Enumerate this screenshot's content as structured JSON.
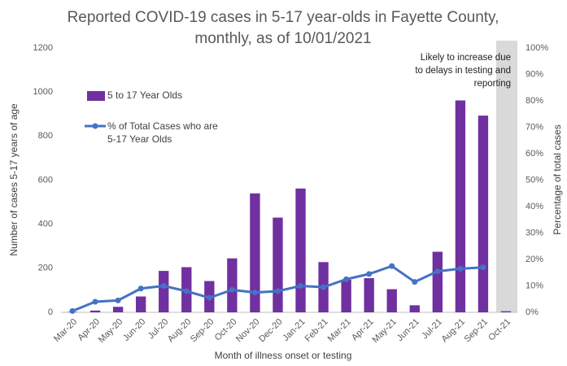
{
  "chart_data": {
    "type": "bar_line",
    "title": [
      "Reported COVID-19 cases in 5-17 year-olds in Fayette County,",
      "monthly, as of 10/01/2021"
    ],
    "x_label": "Month of illness onset or testing",
    "y_label": "Number of cases 5-17 years of age",
    "y2_label": "Percentage of total cases",
    "annotation": [
      "Likely to increase due",
      "to delays in testing and",
      "reporting"
    ],
    "categories": [
      "Mar-20",
      "Apr-20",
      "May-20",
      "Jun-20",
      "Jul-20",
      "Aug-20",
      "Sep-20",
      "Oct-20",
      "Nov-20",
      "Dec-20",
      "Jan-21",
      "Feb-21",
      "Mar-21",
      "Apr-21",
      "May-21",
      "Jun-21",
      "Jul-21",
      "Aug-21",
      "Sep-21",
      "Oct-21"
    ],
    "series": [
      {
        "name": "5 to 17 Year Olds",
        "type": "bar",
        "color": "#7030a0",
        "values": [
          2,
          8,
          25,
          72,
          188,
          205,
          142,
          245,
          540,
          430,
          562,
          228,
          148,
          155,
          105,
          32,
          275,
          962,
          893,
          5
        ]
      },
      {
        "name": "% of Total Cases who are 5-17 Year Olds",
        "type": "line",
        "axis": "y2",
        "color": "#4472c4",
        "values": [
          0.5,
          4,
          4.5,
          9,
          10,
          8,
          5.5,
          8.5,
          7.5,
          8,
          10,
          9.5,
          12.5,
          14.5,
          17.5,
          11.5,
          15.5,
          16.5,
          17,
          null
        ]
      }
    ],
    "ylim": [
      0,
      1200
    ],
    "yticks": [
      0,
      200,
      400,
      600,
      800,
      1000,
      1200
    ],
    "y2lim": [
      0,
      100
    ],
    "y2ticks": [
      {
        "value": 0,
        "label": "0%"
      },
      {
        "value": 10,
        "label": "10%"
      },
      {
        "value": 20,
        "label": "20%"
      },
      {
        "value": 30,
        "label": "30%"
      },
      {
        "value": 40,
        "label": "40%"
      },
      {
        "value": 50,
        "label": "50%"
      },
      {
        "value": 60,
        "label": "60%"
      },
      {
        "value": 70,
        "label": "70%"
      },
      {
        "value": 80,
        "label": "80%"
      },
      {
        "value": 90,
        "label": "90%"
      },
      {
        "value": 100,
        "label": "100%"
      }
    ],
    "grid": false
  }
}
